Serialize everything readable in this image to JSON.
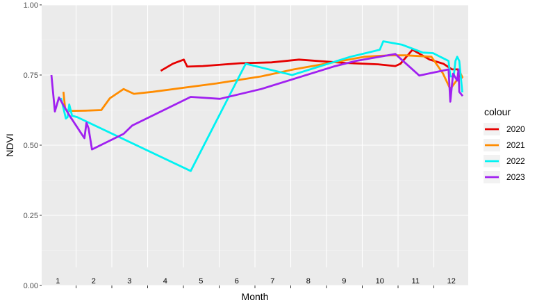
{
  "chart_data": {
    "type": "line",
    "title": "",
    "xlabel": "Month",
    "ylabel": "NDVI",
    "ylim": [
      0,
      1
    ],
    "xlim": [
      0,
      12
    ],
    "grid": true,
    "legend_title": "colour",
    "legend_position": "right",
    "y_ticks": [
      {
        "value": 0.0,
        "label": "0.00"
      },
      {
        "value": 0.25,
        "label": "0.25"
      },
      {
        "value": 0.5,
        "label": "0.50"
      },
      {
        "value": 0.75,
        "label": "0.75"
      },
      {
        "value": 1.0,
        "label": "1.00"
      }
    ],
    "month_labels": [
      "1",
      "2",
      "3",
      "4",
      "5",
      "6",
      "7",
      "8",
      "9",
      "10",
      "11",
      "12"
    ],
    "series": [
      {
        "name": "2020",
        "color": "#e60000",
        "points": [
          [
            3.18,
            0.765
          ],
          [
            3.53,
            0.79
          ],
          [
            3.85,
            0.805
          ],
          [
            3.95,
            0.78
          ],
          [
            4.4,
            0.782
          ],
          [
            5.5,
            0.792
          ],
          [
            6.4,
            0.795
          ],
          [
            7.2,
            0.805
          ],
          [
            7.75,
            0.8
          ],
          [
            8.55,
            0.793
          ],
          [
            9.5,
            0.788
          ],
          [
            10.0,
            0.782
          ],
          [
            10.15,
            0.79
          ],
          [
            10.5,
            0.84
          ],
          [
            11.0,
            0.805
          ],
          [
            11.4,
            0.79
          ],
          [
            11.65,
            0.77
          ],
          [
            11.82,
            0.77
          ],
          [
            11.88,
            0.745
          ],
          [
            11.96,
            0.74
          ]
        ]
      },
      {
        "name": "2021",
        "color": "#ff8c00",
        "points": [
          [
            0.35,
            0.69
          ],
          [
            0.4,
            0.63
          ],
          [
            0.47,
            0.622
          ],
          [
            1.0,
            0.623
          ],
          [
            1.45,
            0.625
          ],
          [
            1.7,
            0.667
          ],
          [
            2.1,
            0.7
          ],
          [
            2.4,
            0.683
          ],
          [
            2.95,
            0.69
          ],
          [
            4.8,
            0.72
          ],
          [
            6.1,
            0.745
          ],
          [
            7.05,
            0.77
          ],
          [
            8.2,
            0.795
          ],
          [
            9.1,
            0.815
          ],
          [
            9.85,
            0.82
          ],
          [
            10.3,
            0.82
          ],
          [
            11.05,
            0.815
          ],
          [
            11.38,
            0.757
          ],
          [
            11.6,
            0.7
          ],
          [
            11.78,
            0.73
          ],
          [
            11.88,
            0.76
          ],
          [
            11.96,
            0.74
          ]
        ]
      },
      {
        "name": "2022",
        "color": "#00f2f2",
        "points": [
          [
            0.28,
            0.668
          ],
          [
            0.42,
            0.595
          ],
          [
            0.47,
            0.6
          ],
          [
            0.52,
            0.645
          ],
          [
            0.6,
            0.605
          ],
          [
            0.75,
            0.6
          ],
          [
            4.05,
            0.408
          ],
          [
            5.65,
            0.79
          ],
          [
            7.0,
            0.75
          ],
          [
            8.7,
            0.815
          ],
          [
            9.55,
            0.84
          ],
          [
            9.65,
            0.87
          ],
          [
            10.2,
            0.858
          ],
          [
            10.8,
            0.83
          ],
          [
            11.1,
            0.828
          ],
          [
            11.55,
            0.8
          ],
          [
            11.6,
            0.745
          ],
          [
            11.7,
            0.745
          ],
          [
            11.75,
            0.8
          ],
          [
            11.8,
            0.815
          ],
          [
            11.86,
            0.8
          ],
          [
            11.95,
            0.688
          ]
        ]
      },
      {
        "name": "2023",
        "color": "#a020f0",
        "points": [
          [
            0.0,
            0.75
          ],
          [
            0.1,
            0.62
          ],
          [
            0.22,
            0.67
          ],
          [
            0.52,
            0.607
          ],
          [
            0.85,
            0.545
          ],
          [
            0.96,
            0.525
          ],
          [
            1.02,
            0.58
          ],
          [
            1.08,
            0.56
          ],
          [
            1.18,
            0.485
          ],
          [
            2.1,
            0.54
          ],
          [
            2.35,
            0.57
          ],
          [
            4.05,
            0.672
          ],
          [
            4.9,
            0.665
          ],
          [
            6.1,
            0.7
          ],
          [
            8.2,
            0.78
          ],
          [
            8.85,
            0.8
          ],
          [
            10.0,
            0.825
          ],
          [
            10.7,
            0.748
          ],
          [
            11.55,
            0.77
          ],
          [
            11.6,
            0.655
          ],
          [
            11.68,
            0.755
          ],
          [
            11.8,
            0.73
          ],
          [
            11.84,
            0.77
          ],
          [
            11.86,
            0.69
          ],
          [
            11.96,
            0.675
          ]
        ]
      }
    ]
  }
}
